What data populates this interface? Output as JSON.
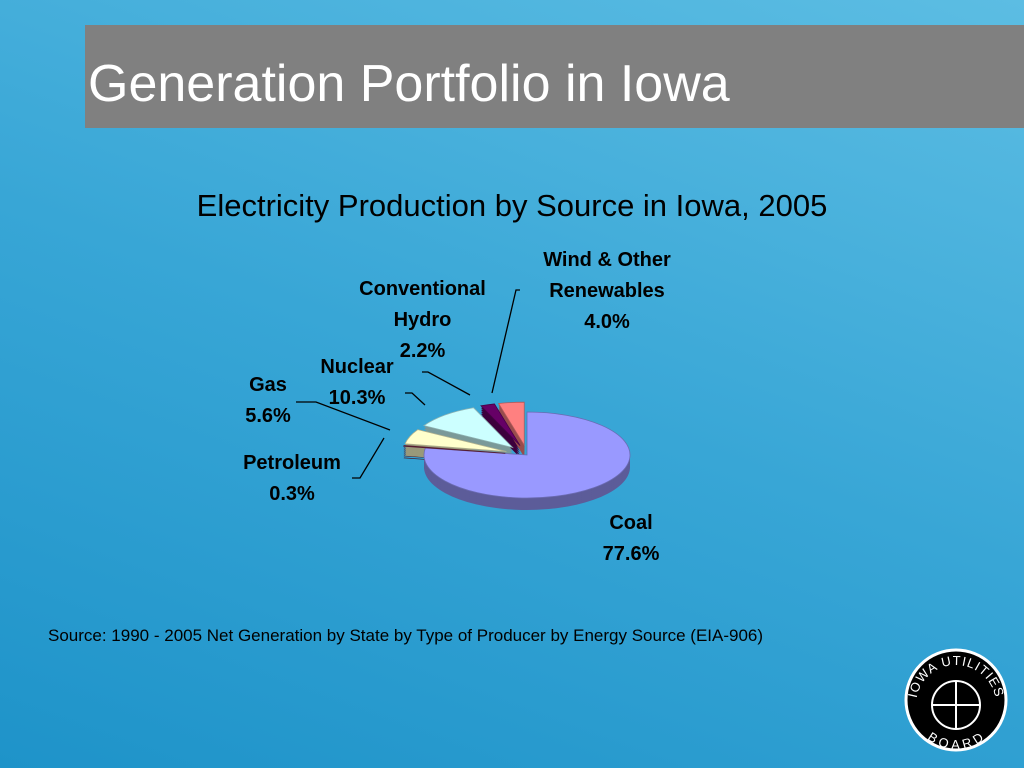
{
  "header": {
    "title": "Generation Portfolio in Iowa"
  },
  "chart_data": {
    "type": "pie",
    "title": "Electricity Production by Source in Iowa, 2005",
    "categories": [
      "Coal",
      "Petroleum",
      "Gas",
      "Nuclear",
      "Conventional Hydro",
      "Wind & Other Renewables"
    ],
    "values": [
      77.6,
      0.3,
      5.6,
      10.3,
      2.2,
      4.0
    ],
    "value_labels": [
      "77.6%",
      "0.3%",
      "5.6%",
      "10.3%",
      "2.2%",
      "4.0%"
    ],
    "colors": [
      "#9999ff",
      "#7a2a48",
      "#ffffcc",
      "#ccffff",
      "#660066",
      "#ff8080"
    ]
  },
  "source": "Source: 1990 - 2005 Net Generation by State by Type of Producer by Energy Source (EIA-906)",
  "logo": {
    "top": "IOWA UTILITIES",
    "bottom": "BOARD"
  }
}
